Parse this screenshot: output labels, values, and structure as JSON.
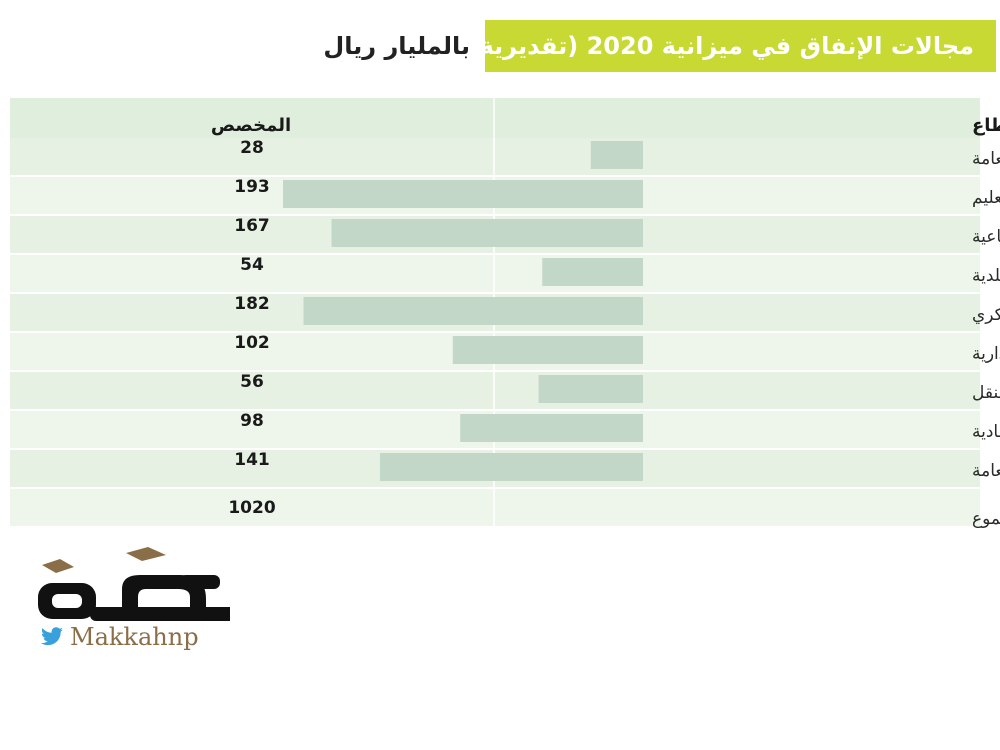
{
  "header": {
    "title": "مجالات الإنفاق في ميزانية 2020 (تقديرية)",
    "unit": "بالمليار ريال"
  },
  "table": {
    "col_sector": "القطاع",
    "col_allocation": "المخصص",
    "total_label": "المجموع",
    "total_value": "1020"
  },
  "chart_data": {
    "type": "bar",
    "orientation": "horizontal",
    "title": "مجالات الإنفاق في ميزانية 2020 (تقديرية)",
    "unit": "بالمليار ريال",
    "categories": [
      "الإدارة العامة",
      "التعليم",
      "الخدمات الصحية والتنمية الاجتماعية",
      "الخدمات البلدية",
      "القطاع العسكري",
      "قطاع الأمن والمناطق الإدارية",
      "قطاع التجهيزات الأساسية والنقل",
      "قطاع الموارد الاقتصادية",
      "قطاع البنود العامة"
    ],
    "values": [
      28,
      193,
      167,
      54,
      182,
      102,
      56,
      98,
      141
    ],
    "total": 1020,
    "colors": {
      "bar": "#c3d7c8",
      "header_bg": "#dfeedd",
      "row_odd": "#e6f1e3",
      "row_even": "#eef6ec",
      "title_bg": "#c7d932"
    }
  },
  "logo": {
    "handle": "Makkahnp",
    "icon": "twitter-bird-icon",
    "handle_color": "#8a6e47",
    "twitter_color": "#3aa0dc"
  }
}
